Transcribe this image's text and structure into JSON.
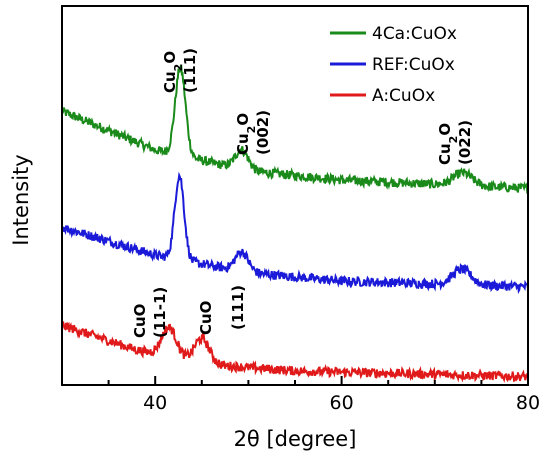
{
  "chart_data": {
    "type": "line",
    "xlabel": "2θ [degree]",
    "ylabel": "Intensity",
    "xlim": [
      30,
      80
    ],
    "xticks": [
      40,
      60,
      80
    ],
    "y_ticks_shown": false,
    "grid": false,
    "legend_position": "top-right",
    "series": [
      {
        "name": "4Ca:CuOx",
        "color": "#1a8a1a",
        "baseline": [
          [
            30,
            3.9
          ],
          [
            40,
            3.35
          ],
          [
            50,
            3.05
          ],
          [
            60,
            2.92
          ],
          [
            80,
            2.8
          ]
        ],
        "peaks": [
          [
            42.7,
            1.25,
            0.55
          ],
          [
            49.3,
            0.28,
            0.7
          ],
          [
            73.0,
            0.18,
            1.0
          ]
        ]
      },
      {
        "name": "REF:CuOx",
        "color": "#1a1ad8",
        "baseline": [
          [
            30,
            2.25
          ],
          [
            40,
            1.85
          ],
          [
            50,
            1.6
          ],
          [
            60,
            1.48
          ],
          [
            80,
            1.4
          ]
        ],
        "peaks": [
          [
            42.6,
            1.2,
            0.5
          ],
          [
            49.3,
            0.28,
            0.7
          ],
          [
            72.9,
            0.22,
            1.0
          ]
        ]
      },
      {
        "name": "A:CuOx",
        "color": "#e01a1a",
        "baseline": [
          [
            30,
            0.85
          ],
          [
            38,
            0.5
          ],
          [
            45,
            0.3
          ],
          [
            55,
            0.2
          ],
          [
            80,
            0.12
          ]
        ],
        "peaks": [
          [
            41.5,
            0.42,
            0.8
          ],
          [
            45.0,
            0.36,
            0.8
          ]
        ]
      }
    ],
    "annotations": [
      {
        "phase": "Cu2O",
        "hkl": "(111)",
        "x": 42.7
      },
      {
        "phase": "Cu2O",
        "hkl": "(002)",
        "x": 49.3
      },
      {
        "phase": "Cu2O",
        "hkl": "(022)",
        "x": 73.0
      },
      {
        "phase": "CuO",
        "hkl": "(11-1)",
        "x": 41.5
      },
      {
        "phase": "CuO",
        "hkl": "(111)",
        "x": 45.0
      }
    ]
  }
}
